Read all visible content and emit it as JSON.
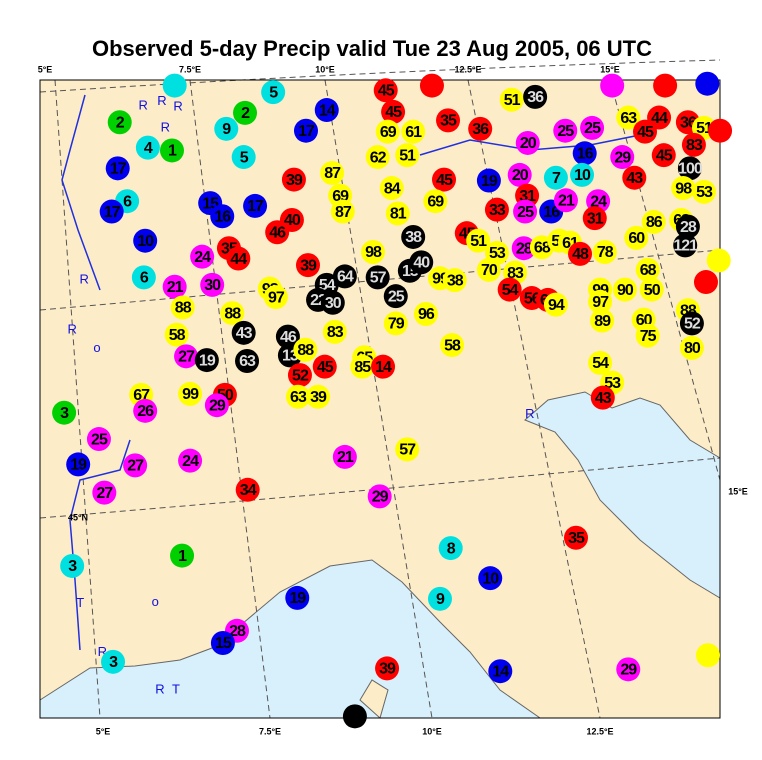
{
  "title": "Observed 5-day Precip valid Tue 23 Aug 2005, 06 UTC",
  "lon_labels_top": [
    "5°E",
    "7.5°E",
    "10°E",
    "12.5°E",
    "15°E"
  ],
  "lon_labels_bottom": [
    "5°E",
    "7.5°E",
    "10°E",
    "12.5°E"
  ],
  "right_label": "15°E",
  "lat_label": "45°N",
  "stations": [
    {
      "lon": 6.01,
      "lat": 49.6,
      "color": "#00e0e0"
    },
    {
      "label": "5",
      "lon": 7.48,
      "lat": 49.53,
      "color": "#00e0e0"
    },
    {
      "label": "2",
      "lon": 7.06,
      "lat": 49.31,
      "color": "#00d000"
    },
    {
      "label": "2",
      "lon": 5.19,
      "lat": 49.21,
      "color": "#00d000"
    },
    {
      "label": "9",
      "lon": 6.78,
      "lat": 49.14,
      "color": "#00e0e0"
    },
    {
      "label": "4",
      "lon": 5.61,
      "lat": 48.94,
      "color": "#00e0e0"
    },
    {
      "label": "1",
      "lon": 5.97,
      "lat": 48.91,
      "color": "#00d000"
    },
    {
      "label": "5",
      "lon": 7.04,
      "lat": 48.84,
      "color": "#00e0e0"
    },
    {
      "label": "14",
      "lon": 8.28,
      "lat": 49.34,
      "color": "#0000ee"
    },
    {
      "label": "17",
      "lon": 7.97,
      "lat": 49.12,
      "color": "#0000ee"
    },
    {
      "label": "45",
      "lon": 9.16,
      "lat": 49.55,
      "color": "#ff0000"
    },
    {
      "lon": 9.85,
      "lat": 49.6,
      "color": "#ff0000"
    },
    {
      "label": "45",
      "lon": 9.27,
      "lat": 49.32,
      "color": "#ff0000"
    },
    {
      "label": "69",
      "lon": 9.19,
      "lat": 49.11,
      "color": "#ffff00"
    },
    {
      "label": "61",
      "lon": 9.57,
      "lat": 49.11,
      "color": "#ffff00"
    },
    {
      "label": "62",
      "lon": 9.04,
      "lat": 48.84,
      "color": "#ffff00"
    },
    {
      "label": "51",
      "lon": 9.48,
      "lat": 48.86,
      "color": "#ffff00"
    },
    {
      "label": "35",
      "lon": 10.09,
      "lat": 49.23,
      "color": "#ff0000"
    },
    {
      "label": "36",
      "lon": 10.57,
      "lat": 49.14,
      "color": "#ff0000"
    },
    {
      "label": "51",
      "lon": 11.04,
      "lat": 49.45,
      "color": "#ffff00"
    },
    {
      "label": "36",
      "lon": 11.39,
      "lat": 49.48,
      "color": "#000000"
    },
    {
      "label": "20",
      "lon": 11.28,
      "lat": 48.99,
      "color": "#ff00ff"
    },
    {
      "label": "25",
      "lon": 11.84,
      "lat": 49.12,
      "color": "#ff00ff"
    },
    {
      "label": "25",
      "lon": 12.24,
      "lat": 49.15,
      "color": "#ff00ff"
    },
    {
      "lon": 12.54,
      "lat": 49.6,
      "color": "#ff00ff"
    },
    {
      "label": "63",
      "lon": 12.78,
      "lat": 49.26,
      "color": "#ffff00"
    },
    {
      "lon": 13.33,
      "lat": 49.6,
      "color": "#ff0000"
    },
    {
      "lon": 13.96,
      "lat": 49.62,
      "color": "#0000ee"
    },
    {
      "label": "44",
      "lon": 13.24,
      "lat": 49.26,
      "color": "#ff0000"
    },
    {
      "label": "45",
      "lon": 13.03,
      "lat": 49.11,
      "color": "#ff0000"
    },
    {
      "label": "36",
      "lon": 13.67,
      "lat": 49.21,
      "color": "#ff0000"
    },
    {
      "label": "51",
      "lon": 13.91,
      "lat": 49.15,
      "color": "#ffff00"
    },
    {
      "lon": 14.15,
      "lat": 49.12,
      "color": "#ff0000"
    },
    {
      "label": "45",
      "lon": 13.31,
      "lat": 48.86,
      "color": "#ff0000"
    },
    {
      "label": "83",
      "lon": 13.76,
      "lat": 48.97,
      "color": "#ff0000"
    },
    {
      "label": "16",
      "lon": 12.13,
      "lat": 48.88,
      "color": "#0000ee"
    },
    {
      "label": "29",
      "lon": 12.69,
      "lat": 48.84,
      "color": "#ff00ff"
    },
    {
      "label": "17",
      "lon": 5.16,
      "lat": 48.72,
      "color": "#0000ee"
    },
    {
      "label": "39",
      "lon": 7.79,
      "lat": 48.6,
      "color": "#ff0000"
    },
    {
      "label": "87",
      "lon": 8.36,
      "lat": 48.67,
      "color": "#ffff00"
    },
    {
      "label": "69",
      "lon": 8.48,
      "lat": 48.43,
      "color": "#ffff00"
    },
    {
      "label": "87",
      "lon": 8.52,
      "lat": 48.26,
      "color": "#ffff00"
    },
    {
      "label": "84",
      "lon": 9.25,
      "lat": 48.51,
      "color": "#ffff00"
    },
    {
      "label": "81",
      "lon": 9.34,
      "lat": 48.24,
      "color": "#ffff00"
    },
    {
      "label": "45",
      "lon": 10.03,
      "lat": 48.6,
      "color": "#ff0000"
    },
    {
      "label": "69",
      "lon": 9.9,
      "lat": 48.37,
      "color": "#ffff00"
    },
    {
      "label": "19",
      "lon": 10.7,
      "lat": 48.59,
      "color": "#0000ee"
    },
    {
      "label": "20",
      "lon": 11.16,
      "lat": 48.65,
      "color": "#ff00ff"
    },
    {
      "label": "7",
      "lon": 11.7,
      "lat": 48.62,
      "color": "#00e0e0"
    },
    {
      "label": "10",
      "lon": 12.09,
      "lat": 48.65,
      "color": "#00e0e0"
    },
    {
      "label": "43",
      "lon": 12.87,
      "lat": 48.62,
      "color": "#ff0000"
    },
    {
      "label": "100",
      "lon": 13.7,
      "lat": 48.72,
      "color": "#000000"
    },
    {
      "label": "98",
      "lon": 13.6,
      "lat": 48.51,
      "color": "#ffff00"
    },
    {
      "label": "53",
      "lon": 13.91,
      "lat": 48.47,
      "color": "#ffff00"
    },
    {
      "label": "6",
      "lon": 5.3,
      "lat": 48.37,
      "color": "#00e0e0"
    },
    {
      "label": "17",
      "lon": 5.07,
      "lat": 48.26,
      "color": "#0000ee"
    },
    {
      "label": "15",
      "lon": 6.54,
      "lat": 48.35,
      "color": "#0000ee"
    },
    {
      "label": "16",
      "lon": 6.72,
      "lat": 48.21,
      "color": "#0000ee"
    },
    {
      "label": "17",
      "lon": 7.21,
      "lat": 48.32,
      "color": "#0000ee"
    },
    {
      "label": "40",
      "lon": 7.76,
      "lat": 48.17,
      "color": "#ff0000"
    },
    {
      "label": "46",
      "lon": 7.54,
      "lat": 48.04,
      "color": "#ff0000"
    },
    {
      "label": "33",
      "lon": 10.82,
      "lat": 48.28,
      "color": "#ff0000"
    },
    {
      "label": "31",
      "lon": 11.27,
      "lat": 48.43,
      "color": "#ff0000"
    },
    {
      "label": "25",
      "lon": 11.24,
      "lat": 48.26,
      "color": "#ff00ff"
    },
    {
      "label": "16",
      "lon": 11.63,
      "lat": 48.26,
      "color": "#0000ee"
    },
    {
      "label": "21",
      "lon": 11.85,
      "lat": 48.38,
      "color": "#ff00ff"
    },
    {
      "label": "24",
      "lon": 12.33,
      "lat": 48.37,
      "color": "#ff00ff"
    },
    {
      "label": "31",
      "lon": 12.28,
      "lat": 48.19,
      "color": "#ff0000"
    },
    {
      "label": "86",
      "lon": 13.16,
      "lat": 48.15,
      "color": "#ffff00"
    },
    {
      "label": "68",
      "lon": 13.57,
      "lat": 48.17,
      "color": "#ffff00"
    },
    {
      "label": "28",
      "lon": 13.67,
      "lat": 48.1,
      "color": "#000000"
    },
    {
      "label": "121",
      "lon": 13.63,
      "lat": 47.9,
      "color": "#000000"
    },
    {
      "label": "60",
      "lon": 12.9,
      "lat": 47.98,
      "color": "#ffff00"
    },
    {
      "label": "10",
      "lon": 5.57,
      "lat": 47.95,
      "color": "#0000ee"
    },
    {
      "label": "24",
      "lon": 6.42,
      "lat": 47.78,
      "color": "#ff00ff"
    },
    {
      "label": "35",
      "lon": 6.82,
      "lat": 47.87,
      "color": "#ff0000"
    },
    {
      "label": "44",
      "lon": 6.96,
      "lat": 47.76,
      "color": "#ff0000"
    },
    {
      "label": "98",
      "lon": 8.97,
      "lat": 47.83,
      "color": "#ffff00"
    },
    {
      "label": "38",
      "lon": 9.57,
      "lat": 47.99,
      "color": "#000000"
    },
    {
      "label": "45",
      "lon": 10.37,
      "lat": 48.03,
      "color": "#ff0000"
    },
    {
      "label": "51",
      "lon": 10.54,
      "lat": 47.95,
      "color": "#ffff00"
    },
    {
      "label": "53",
      "lon": 10.82,
      "lat": 47.82,
      "color": "#ffff00"
    },
    {
      "label": "28",
      "lon": 11.22,
      "lat": 47.87,
      "color": "#ff00ff"
    },
    {
      "label": "68",
      "lon": 11.49,
      "lat": 47.88,
      "color": "#ffff00"
    },
    {
      "label": "55",
      "lon": 11.75,
      "lat": 47.95,
      "color": "#ffff00"
    },
    {
      "label": "61",
      "lon": 11.91,
      "lat": 47.93,
      "color": "#ffff00"
    },
    {
      "label": "48",
      "lon": 12.06,
      "lat": 47.81,
      "color": "#ff0000"
    },
    {
      "label": "78",
      "lon": 12.43,
      "lat": 47.83,
      "color": "#ffff00"
    },
    {
      "lon": 14.13,
      "lat": 47.74,
      "color": "#ffff00"
    },
    {
      "label": "6",
      "lon": 5.55,
      "lat": 47.56,
      "color": "#00e0e0"
    },
    {
      "label": "21",
      "lon": 6.01,
      "lat": 47.46,
      "color": "#ff00ff"
    },
    {
      "label": "30",
      "lon": 6.57,
      "lat": 47.48,
      "color": "#ff00ff"
    },
    {
      "label": "93",
      "lon": 7.43,
      "lat": 47.44,
      "color": "#ffff00"
    },
    {
      "label": "97",
      "lon": 7.52,
      "lat": 47.35,
      "color": "#ffff00"
    },
    {
      "label": "39",
      "lon": 8.0,
      "lat": 47.69,
      "color": "#ff0000"
    },
    {
      "label": "54",
      "lon": 8.28,
      "lat": 47.48,
      "color": "#000000"
    },
    {
      "label": "64",
      "lon": 8.55,
      "lat": 47.57,
      "color": "#000000"
    },
    {
      "label": "57",
      "lon": 9.04,
      "lat": 47.56,
      "color": "#000000"
    },
    {
      "label": "15",
      "lon": 9.52,
      "lat": 47.63,
      "color": "#000000"
    },
    {
      "label": "40",
      "lon": 9.69,
      "lat": 47.72,
      "color": "#000000"
    },
    {
      "label": "99",
      "lon": 9.97,
      "lat": 47.55,
      "color": "#ffff00"
    },
    {
      "label": "38",
      "lon": 10.19,
      "lat": 47.53,
      "color": "#ffff00"
    },
    {
      "label": "70",
      "lon": 10.7,
      "lat": 47.64,
      "color": "#ffff00"
    },
    {
      "label": "83",
      "lon": 11.09,
      "lat": 47.61,
      "color": "#ffff00"
    },
    {
      "label": "54",
      "lon": 11.01,
      "lat": 47.43,
      "color": "#ff0000"
    },
    {
      "label": "56",
      "lon": 11.34,
      "lat": 47.34,
      "color": "#ff0000"
    },
    {
      "label": "64",
      "lon": 11.58,
      "lat": 47.32,
      "color": "#ff0000"
    },
    {
      "label": "94",
      "lon": 11.7,
      "lat": 47.27,
      "color": "#ffff00"
    },
    {
      "label": "99",
      "lon": 12.36,
      "lat": 47.43,
      "color": "#ffff00"
    },
    {
      "label": "90",
      "lon": 12.73,
      "lat": 47.43,
      "color": "#ffff00"
    },
    {
      "label": "50",
      "lon": 13.13,
      "lat": 47.43,
      "color": "#ffff00"
    },
    {
      "label": "68",
      "lon": 13.07,
      "lat": 47.64,
      "color": "#ffff00"
    },
    {
      "lon": 13.94,
      "lat": 47.51,
      "color": "#ff0000"
    },
    {
      "label": "88",
      "lon": 6.13,
      "lat": 47.24,
      "color": "#ffff00"
    },
    {
      "label": "88",
      "lon": 6.87,
      "lat": 47.18,
      "color": "#ffff00"
    },
    {
      "label": "22",
      "lon": 8.15,
      "lat": 47.32,
      "color": "#000000"
    },
    {
      "label": "30",
      "lon": 8.37,
      "lat": 47.29,
      "color": "#000000"
    },
    {
      "label": "25",
      "lon": 9.31,
      "lat": 47.36,
      "color": "#000000"
    },
    {
      "label": "97",
      "lon": 12.36,
      "lat": 47.3,
      "color": "#ffff00"
    },
    {
      "label": "79",
      "lon": 9.31,
      "lat": 47.07,
      "color": "#ffff00"
    },
    {
      "label": "96",
      "lon": 9.76,
      "lat": 47.17,
      "color": "#ffff00"
    },
    {
      "label": "89",
      "lon": 12.39,
      "lat": 47.1,
      "color": "#ffff00"
    },
    {
      "label": "60",
      "lon": 13.01,
      "lat": 47.11,
      "color": "#ffff00"
    },
    {
      "label": "88",
      "lon": 13.67,
      "lat": 47.21,
      "color": "#ffff00"
    },
    {
      "label": "52",
      "lon": 13.73,
      "lat": 47.07,
      "color": "#000000"
    },
    {
      "label": "58",
      "lon": 6.04,
      "lat": 46.95,
      "color": "#ffff00"
    },
    {
      "label": "43",
      "lon": 7.04,
      "lat": 46.97,
      "color": "#000000"
    },
    {
      "label": "46",
      "lon": 7.7,
      "lat": 46.93,
      "color": "#000000"
    },
    {
      "label": "83",
      "lon": 8.4,
      "lat": 46.98,
      "color": "#ffff00"
    },
    {
      "label": "75",
      "lon": 13.07,
      "lat": 46.94,
      "color": "#ffff00"
    },
    {
      "label": "58",
      "lon": 10.15,
      "lat": 46.84,
      "color": "#ffff00"
    },
    {
      "label": "27",
      "lon": 6.18,
      "lat": 46.72,
      "color": "#ff00ff"
    },
    {
      "label": "19",
      "lon": 6.49,
      "lat": 46.68,
      "color": "#000000"
    },
    {
      "label": "63",
      "lon": 7.09,
      "lat": 46.67,
      "color": "#000000"
    },
    {
      "label": "13",
      "lon": 7.73,
      "lat": 46.73,
      "color": "#000000"
    },
    {
      "label": "88",
      "lon": 7.96,
      "lat": 46.79,
      "color": "#ffff00"
    },
    {
      "label": "65",
      "lon": 8.84,
      "lat": 46.71,
      "color": "#ffff00"
    },
    {
      "label": "85",
      "lon": 8.81,
      "lat": 46.61,
      "color": "#ffff00"
    },
    {
      "label": "14",
      "lon": 9.12,
      "lat": 46.61,
      "color": "#ff0000"
    },
    {
      "label": "80",
      "lon": 13.73,
      "lat": 46.81,
      "color": "#ffff00"
    },
    {
      "label": "54",
      "lon": 12.36,
      "lat": 46.65,
      "color": "#ffff00"
    },
    {
      "label": "45",
      "lon": 8.25,
      "lat": 46.61,
      "color": "#ff0000"
    },
    {
      "label": "52",
      "lon": 7.88,
      "lat": 46.52,
      "color": "#ff0000"
    },
    {
      "label": "53",
      "lon": 12.54,
      "lat": 46.44,
      "color": "#ffff00"
    },
    {
      "label": "43",
      "lon": 12.4,
      "lat": 46.28,
      "color": "#ff0000"
    },
    {
      "label": "67",
      "lon": 5.51,
      "lat": 46.31,
      "color": "#ffff00"
    },
    {
      "label": "99",
      "lon": 6.24,
      "lat": 46.32,
      "color": "#ffff00"
    },
    {
      "label": "50",
      "lon": 6.76,
      "lat": 46.31,
      "color": "#ff0000"
    },
    {
      "label": "29",
      "lon": 6.64,
      "lat": 46.2,
      "color": "#ff00ff"
    },
    {
      "label": "63",
      "lon": 7.85,
      "lat": 46.29,
      "color": "#ffff00"
    },
    {
      "label": "39",
      "lon": 8.15,
      "lat": 46.29,
      "color": "#ffff00"
    },
    {
      "label": "26",
      "lon": 5.57,
      "lat": 46.14,
      "color": "#ff00ff"
    },
    {
      "label": "3",
      "lon": 4.36,
      "lat": 46.12,
      "color": "#00d000"
    },
    {
      "label": "25",
      "lon": 4.88,
      "lat": 45.84,
      "color": "#ff00ff"
    },
    {
      "label": "57",
      "lon": 9.48,
      "lat": 45.73,
      "color": "#ffff00"
    },
    {
      "label": "19",
      "lon": 4.57,
      "lat": 45.57,
      "color": "#0000ee"
    },
    {
      "label": "27",
      "lon": 5.42,
      "lat": 45.56,
      "color": "#ff00ff"
    },
    {
      "label": "24",
      "lon": 6.24,
      "lat": 45.61,
      "color": "#ff00ff"
    },
    {
      "label": "21",
      "lon": 8.55,
      "lat": 45.65,
      "color": "#ff00ff"
    },
    {
      "label": "27",
      "lon": 4.96,
      "lat": 45.27,
      "color": "#ff00ff"
    },
    {
      "label": "34",
      "lon": 7.1,
      "lat": 45.3,
      "color": "#ff0000"
    },
    {
      "label": "29",
      "lon": 9.07,
      "lat": 45.23,
      "color": "#ff00ff"
    },
    {
      "label": "35",
      "lon": 12.0,
      "lat": 44.79,
      "color": "#ff0000"
    },
    {
      "label": "8",
      "lon": 10.13,
      "lat": 44.68,
      "color": "#00e0e0"
    },
    {
      "label": "1",
      "lon": 6.12,
      "lat": 44.6,
      "color": "#00d000"
    },
    {
      "label": "3",
      "lon": 4.48,
      "lat": 44.49,
      "color": "#00e0e0"
    },
    {
      "label": "10",
      "lon": 10.72,
      "lat": 44.36,
      "color": "#0000ee"
    },
    {
      "label": "19",
      "lon": 7.84,
      "lat": 44.15,
      "color": "#0000ee"
    },
    {
      "label": "9",
      "lon": 9.97,
      "lat": 44.14,
      "color": "#00e0e0"
    },
    {
      "label": "28",
      "lon": 6.94,
      "lat": 43.8,
      "color": "#ff00ff"
    },
    {
      "label": "15",
      "lon": 6.73,
      "lat": 43.67,
      "color": "#0000ee"
    },
    {
      "lon": 13.97,
      "lat": 43.54,
      "color": "#ffff00"
    },
    {
      "label": "3",
      "lon": 5.09,
      "lat": 43.47,
      "color": "#00e0e0"
    },
    {
      "label": "39",
      "lon": 9.18,
      "lat": 43.4,
      "color": "#ff0000"
    },
    {
      "label": "14",
      "lon": 10.87,
      "lat": 43.37,
      "color": "#0000ee"
    },
    {
      "label": "29",
      "lon": 12.78,
      "lat": 43.39,
      "color": "#ff00ff"
    },
    {
      "lon": 8.7,
      "lat": 42.89,
      "color": "#000000"
    }
  ],
  "station_codes": [
    {
      "label": "R",
      "lon": 5.54,
      "lat": 49.38
    },
    {
      "label": "R",
      "lon": 5.82,
      "lat": 49.43
    },
    {
      "label": "R",
      "lon": 6.06,
      "lat": 49.37
    },
    {
      "label": "R",
      "lon": 5.87,
      "lat": 49.15
    },
    {
      "label": "R",
      "lon": 4.66,
      "lat": 47.53
    },
    {
      "label": "R",
      "lon": 4.48,
      "lat": 47.0
    },
    {
      "label": "o",
      "lon": 4.85,
      "lat": 46.8
    },
    {
      "label": "R",
      "lon": 11.31,
      "lat": 46.1
    },
    {
      "label": "T",
      "lon": 4.6,
      "lat": 44.09
    },
    {
      "label": "o",
      "lon": 5.72,
      "lat": 44.1
    },
    {
      "label": "R",
      "lon": 4.93,
      "lat": 43.57
    },
    {
      "label": "R",
      "lon": 5.79,
      "lat": 43.17
    },
    {
      "label": "T",
      "lon": 6.03,
      "lat": 43.17
    }
  ]
}
